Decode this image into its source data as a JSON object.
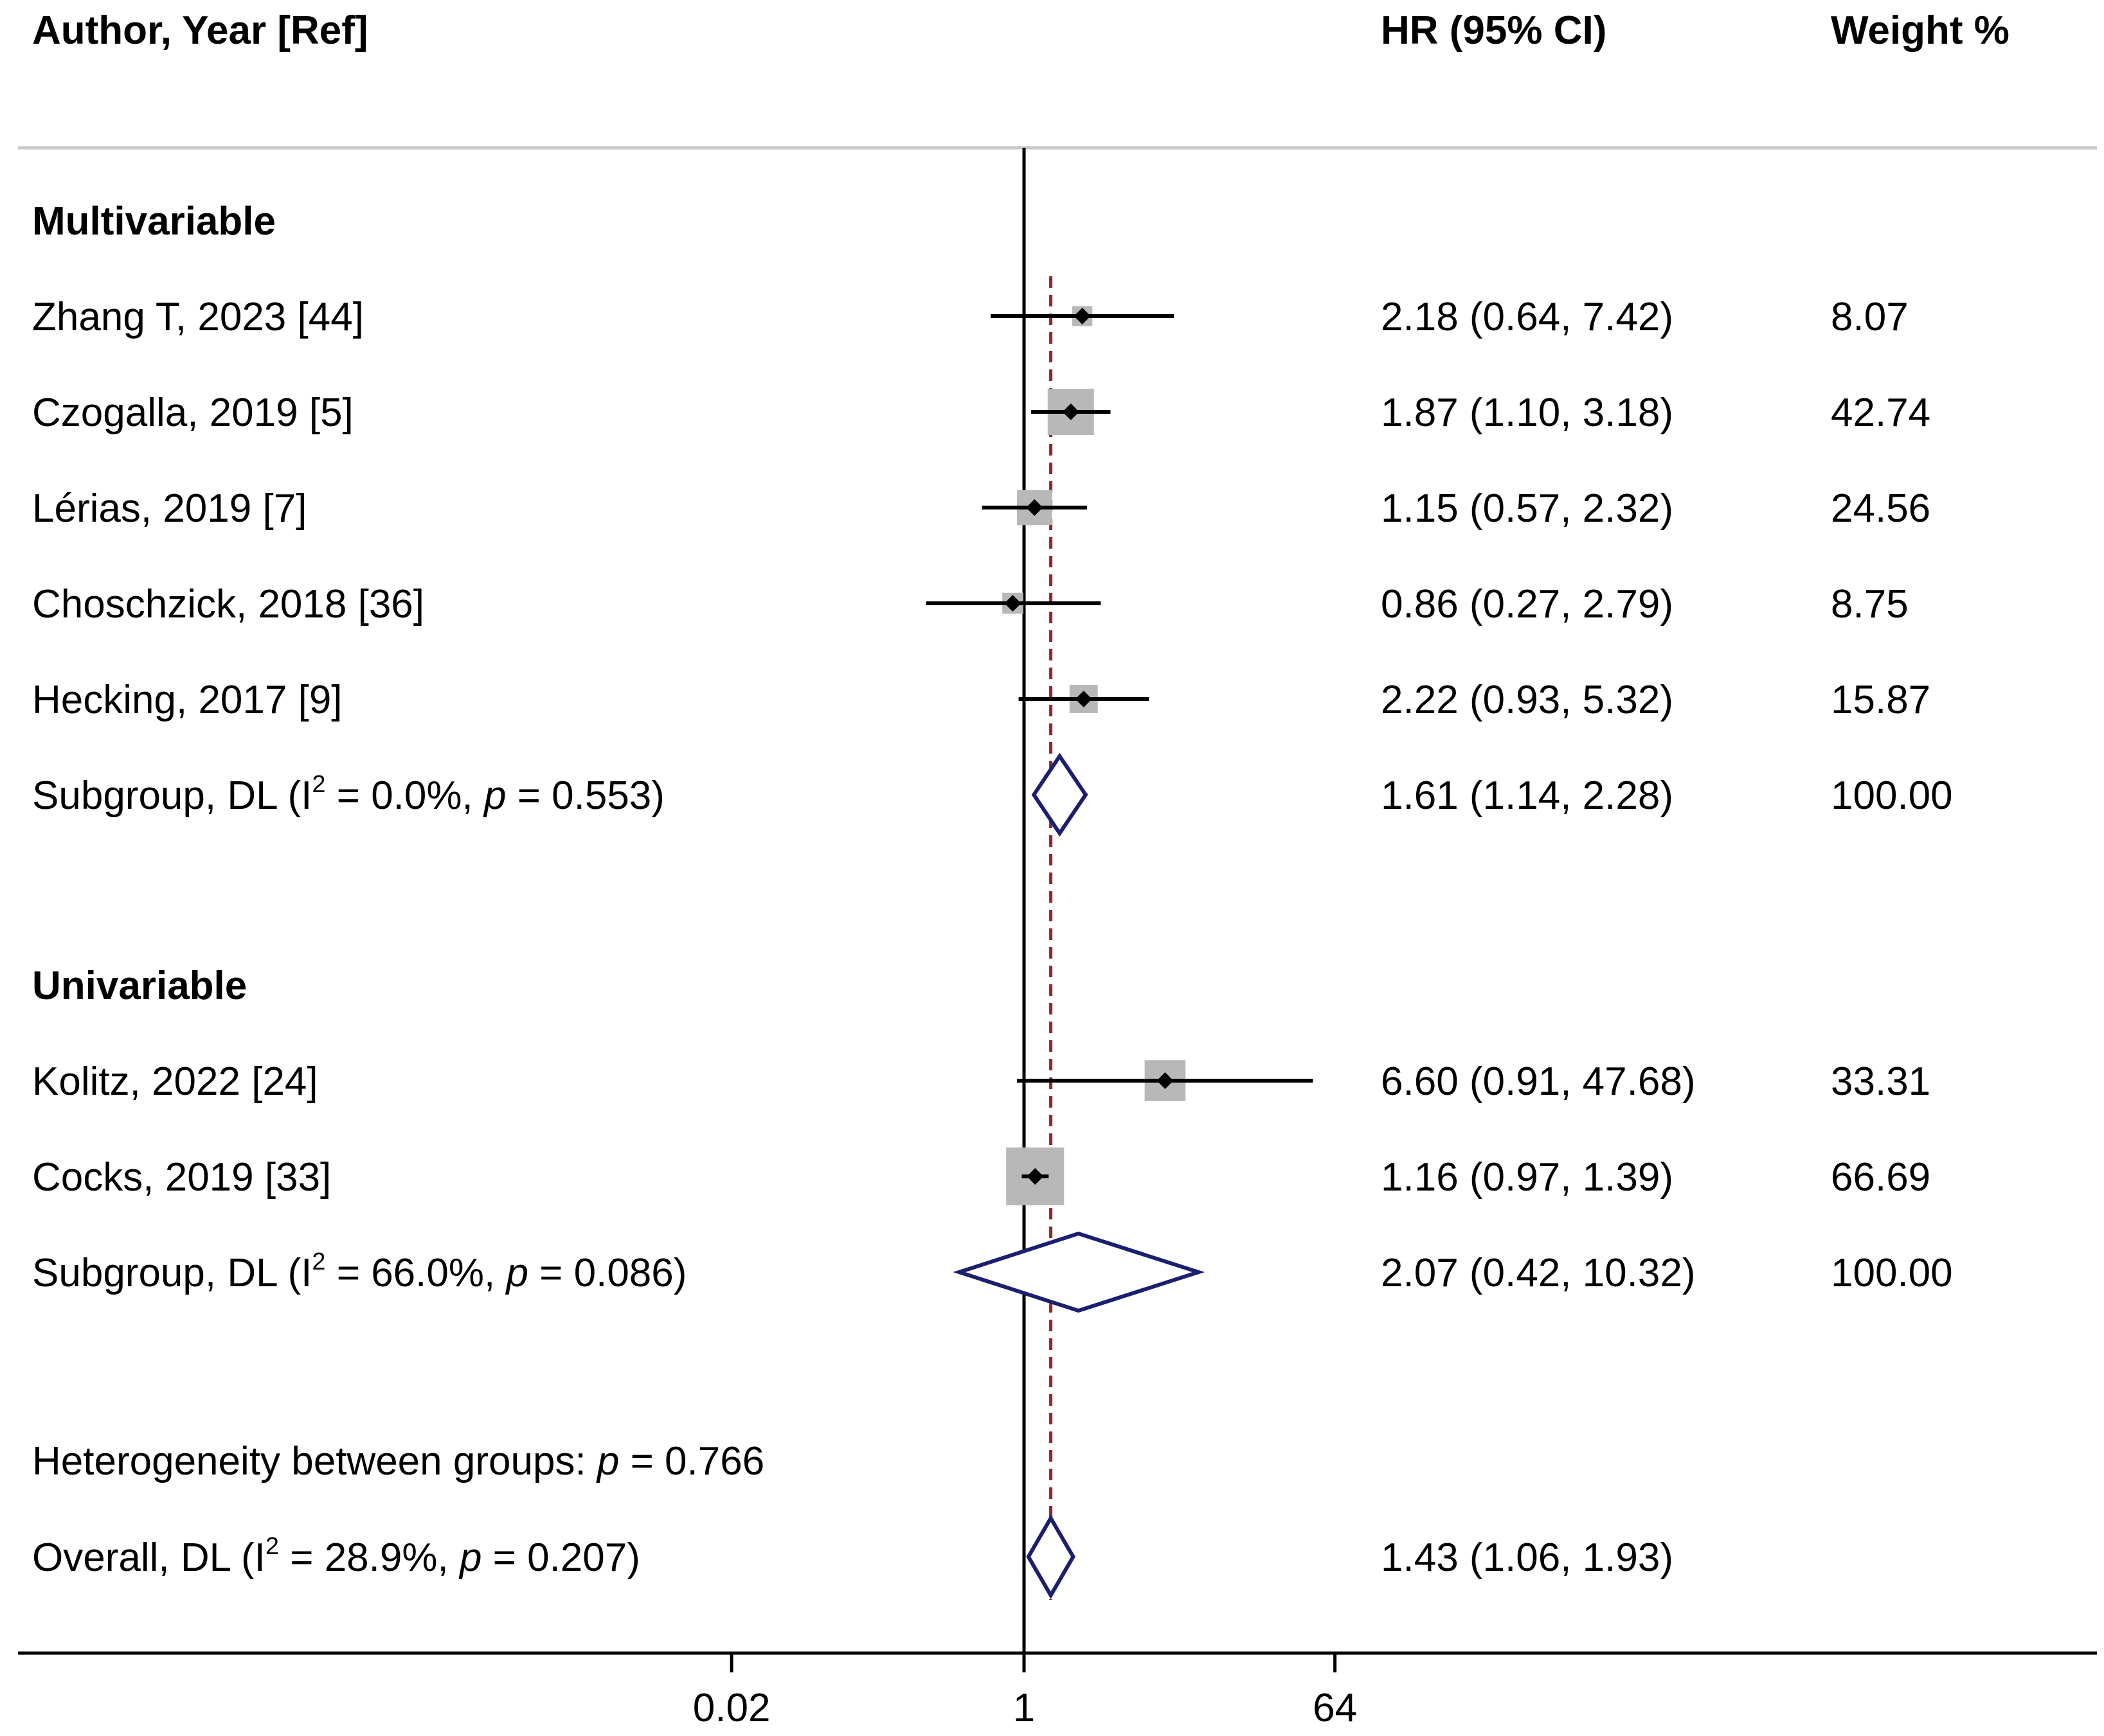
{
  "chart_data": {
    "type": "forest",
    "headers": {
      "study": "Author, Year [Ref]",
      "effect": "HR (95% CI)",
      "weight": "Weight %"
    },
    "x_axis": {
      "scale": "log",
      "ticks": [
        {
          "value": 0.02,
          "label": "0.02"
        },
        {
          "value": 1,
          "label": "1"
        },
        {
          "value": 64,
          "label": "64"
        }
      ],
      "null_line": 1,
      "overall_line": 1.43
    },
    "colors": {
      "marker_box": "#b8b8b8",
      "diamond": "#1a1f6e",
      "overall_line": "#8b2a2a",
      "header_rule": "#c8c8c8"
    },
    "groups": [
      {
        "title": "Multivariable",
        "studies": [
          {
            "label": "Zhang T, 2023 [44]",
            "hr": 2.18,
            "lo": 0.64,
            "hi": 7.42,
            "ci_text": "2.18 (0.64, 7.42)",
            "weight": "8.07",
            "w": 8.07
          },
          {
            "label": "Czogalla, 2019 [5]",
            "hr": 1.87,
            "lo": 1.1,
            "hi": 3.18,
            "ci_text": "1.87 (1.10, 3.18)",
            "weight": "42.74",
            "w": 42.74
          },
          {
            "label": "Lérias, 2019 [7]",
            "hr": 1.15,
            "lo": 0.57,
            "hi": 2.32,
            "ci_text": "1.15 (0.57, 2.32)",
            "weight": "24.56",
            "w": 24.56
          },
          {
            "label": "Choschzick, 2018 [36]",
            "hr": 0.86,
            "lo": 0.27,
            "hi": 2.79,
            "ci_text": "0.86 (0.27, 2.79)",
            "weight": "8.75",
            "w": 8.75
          },
          {
            "label": "Hecking, 2017 [9]",
            "hr": 2.22,
            "lo": 0.93,
            "hi": 5.32,
            "ci_text": "2.22 (0.93, 5.32)",
            "weight": "15.87",
            "w": 15.87
          }
        ],
        "subgroup": {
          "label_prefix": "Subgroup, DL (I",
          "sup": "2",
          "label_mid": " = 0.0%, ",
          "p_italic": "p",
          "label_suffix": " = 0.553)",
          "hr": 1.61,
          "lo": 1.14,
          "hi": 2.28,
          "ci_text": "1.61 (1.14, 2.28)",
          "weight": "100.00"
        }
      },
      {
        "title": "Univariable",
        "studies": [
          {
            "label": "Kolitz, 2022 [24]",
            "hr": 6.6,
            "lo": 0.91,
            "hi": 47.68,
            "ci_text": "6.60 (0.91, 47.68)",
            "weight": "33.31",
            "w": 33.31
          },
          {
            "label": "Cocks, 2019 [33]",
            "hr": 1.16,
            "lo": 0.97,
            "hi": 1.39,
            "ci_text": "1.16 (0.97, 1.39)",
            "weight": "66.69",
            "w": 66.69
          }
        ],
        "subgroup": {
          "label_prefix": "Subgroup, DL (I",
          "sup": "2",
          "label_mid": " = 66.0%, ",
          "p_italic": "p",
          "label_suffix": " = 0.086)",
          "hr": 2.07,
          "lo": 0.42,
          "hi": 10.32,
          "ci_text": "2.07 (0.42, 10.32)",
          "weight": "100.00"
        }
      }
    ],
    "heterogeneity": {
      "prefix": "Heterogeneity between groups: ",
      "p_italic": "p",
      "suffix": " = 0.766"
    },
    "overall": {
      "label_prefix": "Overall, DL (I",
      "sup": "2",
      "label_mid": " = 28.9%, ",
      "p_italic": "p",
      "label_suffix": " = 0.207)",
      "hr": 1.43,
      "lo": 1.06,
      "hi": 1.93,
      "ci_text": "1.43 (1.06, 1.93)"
    }
  }
}
